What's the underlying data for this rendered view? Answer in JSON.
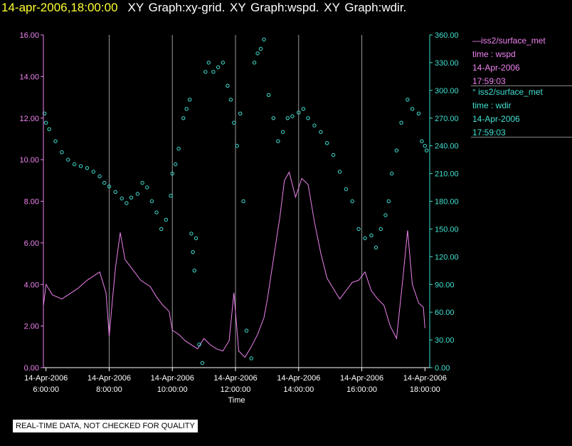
{
  "header": {
    "timestamp": "14-apr-2006,18:00:00",
    "graphs": "XY Graph:xy-grid.  XY Graph:wspd.  XY Graph:wdir."
  },
  "legend": {
    "wspd": {
      "station": "iss2/surface_met",
      "variable": "time : wspd",
      "date": "14-Apr-2006",
      "time": "17:59:03",
      "color": "#ee82ee"
    },
    "wdir": {
      "station": "iss2/surface_met",
      "variable": "time : wdir",
      "date": "14-Apr-2006",
      "time": "17:59:03",
      "color": "#40e0d0"
    }
  },
  "footer": {
    "qc_notice": "REAL-TIME DATA, NOT CHECKED FOR QUALITY"
  },
  "chart_data": {
    "type": "line",
    "xlabel": "Time",
    "x_range": [
      5.917,
      18.15
    ],
    "x_ticks": [
      {
        "value": 6,
        "date": "14-Apr-2006",
        "time": "6:00:00"
      },
      {
        "value": 8,
        "date": "14-Apr-2006",
        "time": "8:00:00"
      },
      {
        "value": 10,
        "date": "14-Apr-2006",
        "time": "10:00:00"
      },
      {
        "value": 12,
        "date": "14-Apr-2006",
        "time": "12:00:00"
      },
      {
        "value": 14,
        "date": "14-Apr-2006",
        "time": "14:00:00"
      },
      {
        "value": 16,
        "date": "14-Apr-2006",
        "time": "16:00:00"
      },
      {
        "value": 18,
        "date": "14-Apr-2006",
        "time": "18:00:00"
      }
    ],
    "grid_x": [
      8,
      10,
      12,
      14,
      16
    ],
    "y_left": {
      "ylim": [
        0,
        16
      ],
      "ticks": [
        "0.00",
        "2.00",
        "4.00",
        "6.00",
        "8.00",
        "10.00",
        "12.00",
        "14.00",
        "16.00"
      ],
      "color": "#ee82ee"
    },
    "y_right": {
      "ylim": [
        0,
        360
      ],
      "ticks": [
        "0.00",
        "30.00",
        "60.00",
        "90.00",
        "120.00",
        "150.00",
        "180.00",
        "210.00",
        "240.00",
        "270.00",
        "300.00",
        "330.00",
        "360.00"
      ],
      "color": "#40e0d0"
    },
    "series": [
      {
        "name": "wspd",
        "style": "line",
        "axis": "left",
        "color": "#ee82ee",
        "points": [
          [
            5.92,
            3.0
          ],
          [
            6.0,
            4.0
          ],
          [
            6.2,
            3.5
          ],
          [
            6.5,
            3.3
          ],
          [
            6.8,
            3.6
          ],
          [
            7.0,
            3.8
          ],
          [
            7.3,
            4.2
          ],
          [
            7.5,
            4.4
          ],
          [
            7.7,
            4.6
          ],
          [
            7.9,
            3.6
          ],
          [
            8.0,
            1.5
          ],
          [
            8.1,
            3.2
          ],
          [
            8.2,
            4.8
          ],
          [
            8.35,
            6.5
          ],
          [
            8.5,
            5.2
          ],
          [
            8.8,
            4.6
          ],
          [
            9.0,
            4.2
          ],
          [
            9.3,
            3.9
          ],
          [
            9.5,
            3.4
          ],
          [
            9.7,
            3.0
          ],
          [
            9.9,
            2.7
          ],
          [
            10.0,
            1.8
          ],
          [
            10.2,
            1.6
          ],
          [
            10.4,
            1.3
          ],
          [
            10.6,
            1.1
          ],
          [
            10.8,
            0.9
          ],
          [
            11.0,
            1.4
          ],
          [
            11.2,
            1.1
          ],
          [
            11.4,
            0.9
          ],
          [
            11.6,
            0.8
          ],
          [
            11.8,
            1.3
          ],
          [
            11.95,
            3.6
          ],
          [
            12.1,
            0.8
          ],
          [
            12.3,
            0.5
          ],
          [
            12.5,
            1.0
          ],
          [
            12.7,
            1.6
          ],
          [
            12.9,
            2.4
          ],
          [
            13.0,
            3.2
          ],
          [
            13.2,
            5.2
          ],
          [
            13.4,
            7.2
          ],
          [
            13.55,
            9.0
          ],
          [
            13.7,
            9.4
          ],
          [
            13.9,
            8.2
          ],
          [
            14.1,
            9.1
          ],
          [
            14.3,
            8.8
          ],
          [
            14.5,
            7.0
          ],
          [
            14.7,
            5.5
          ],
          [
            14.9,
            4.3
          ],
          [
            15.1,
            3.8
          ],
          [
            15.3,
            3.3
          ],
          [
            15.5,
            3.7
          ],
          [
            15.7,
            4.1
          ],
          [
            15.9,
            4.2
          ],
          [
            16.1,
            4.6
          ],
          [
            16.3,
            3.7
          ],
          [
            16.5,
            3.3
          ],
          [
            16.7,
            3.0
          ],
          [
            16.9,
            2.0
          ],
          [
            17.1,
            1.4
          ],
          [
            17.3,
            4.3
          ],
          [
            17.45,
            6.6
          ],
          [
            17.6,
            4.0
          ],
          [
            17.8,
            3.1
          ],
          [
            17.95,
            2.9
          ],
          [
            18.0,
            1.9
          ]
        ]
      },
      {
        "name": "wdir",
        "style": "scatter",
        "axis": "right",
        "color": "#40e0d0",
        "points": [
          [
            5.95,
            275
          ],
          [
            6.0,
            265
          ],
          [
            6.1,
            258
          ],
          [
            6.3,
            245
          ],
          [
            6.5,
            233
          ],
          [
            6.7,
            225
          ],
          [
            6.9,
            220
          ],
          [
            7.1,
            218
          ],
          [
            7.3,
            216
          ],
          [
            7.5,
            212
          ],
          [
            7.7,
            207
          ],
          [
            7.85,
            200
          ],
          [
            8.0,
            196
          ],
          [
            8.2,
            190
          ],
          [
            8.4,
            183
          ],
          [
            8.55,
            178
          ],
          [
            8.7,
            184
          ],
          [
            8.9,
            188
          ],
          [
            9.05,
            200
          ],
          [
            9.2,
            195
          ],
          [
            9.35,
            180
          ],
          [
            9.5,
            168
          ],
          [
            9.65,
            150
          ],
          [
            9.8,
            160
          ],
          [
            9.95,
            186
          ],
          [
            10.0,
            210
          ],
          [
            10.1,
            220
          ],
          [
            10.2,
            237
          ],
          [
            10.35,
            270
          ],
          [
            10.45,
            280
          ],
          [
            10.55,
            290
          ],
          [
            10.6,
            145
          ],
          [
            10.65,
            125
          ],
          [
            10.7,
            105
          ],
          [
            10.75,
            140
          ],
          [
            10.85,
            25
          ],
          [
            10.95,
            5
          ],
          [
            11.05,
            320
          ],
          [
            11.15,
            330
          ],
          [
            11.3,
            320
          ],
          [
            11.45,
            325
          ],
          [
            11.6,
            330
          ],
          [
            11.75,
            305
          ],
          [
            11.85,
            290
          ],
          [
            11.95,
            265
          ],
          [
            12.05,
            240
          ],
          [
            12.15,
            275
          ],
          [
            12.25,
            180
          ],
          [
            12.35,
            40
          ],
          [
            12.5,
            10
          ],
          [
            12.6,
            330
          ],
          [
            12.7,
            340
          ],
          [
            12.8,
            345
          ],
          [
            12.9,
            355
          ],
          [
            13.05,
            295
          ],
          [
            13.2,
            270
          ],
          [
            13.35,
            245
          ],
          [
            13.5,
            255
          ],
          [
            13.65,
            270
          ],
          [
            13.8,
            272
          ],
          [
            14.0,
            276
          ],
          [
            14.15,
            280
          ],
          [
            14.3,
            270
          ],
          [
            14.5,
            262
          ],
          [
            14.7,
            255
          ],
          [
            14.9,
            243
          ],
          [
            15.1,
            230
          ],
          [
            15.3,
            212
          ],
          [
            15.5,
            193
          ],
          [
            15.7,
            180
          ],
          [
            15.9,
            150
          ],
          [
            16.1,
            140
          ],
          [
            16.3,
            143
          ],
          [
            16.45,
            130
          ],
          [
            16.6,
            150
          ],
          [
            16.75,
            165
          ],
          [
            16.85,
            180
          ],
          [
            16.95,
            210
          ],
          [
            17.1,
            235
          ],
          [
            17.25,
            265
          ],
          [
            17.45,
            290
          ],
          [
            17.6,
            280
          ],
          [
            17.8,
            275
          ],
          [
            17.9,
            245
          ],
          [
            18.0,
            240
          ],
          [
            18.05,
            235
          ]
        ]
      }
    ]
  }
}
